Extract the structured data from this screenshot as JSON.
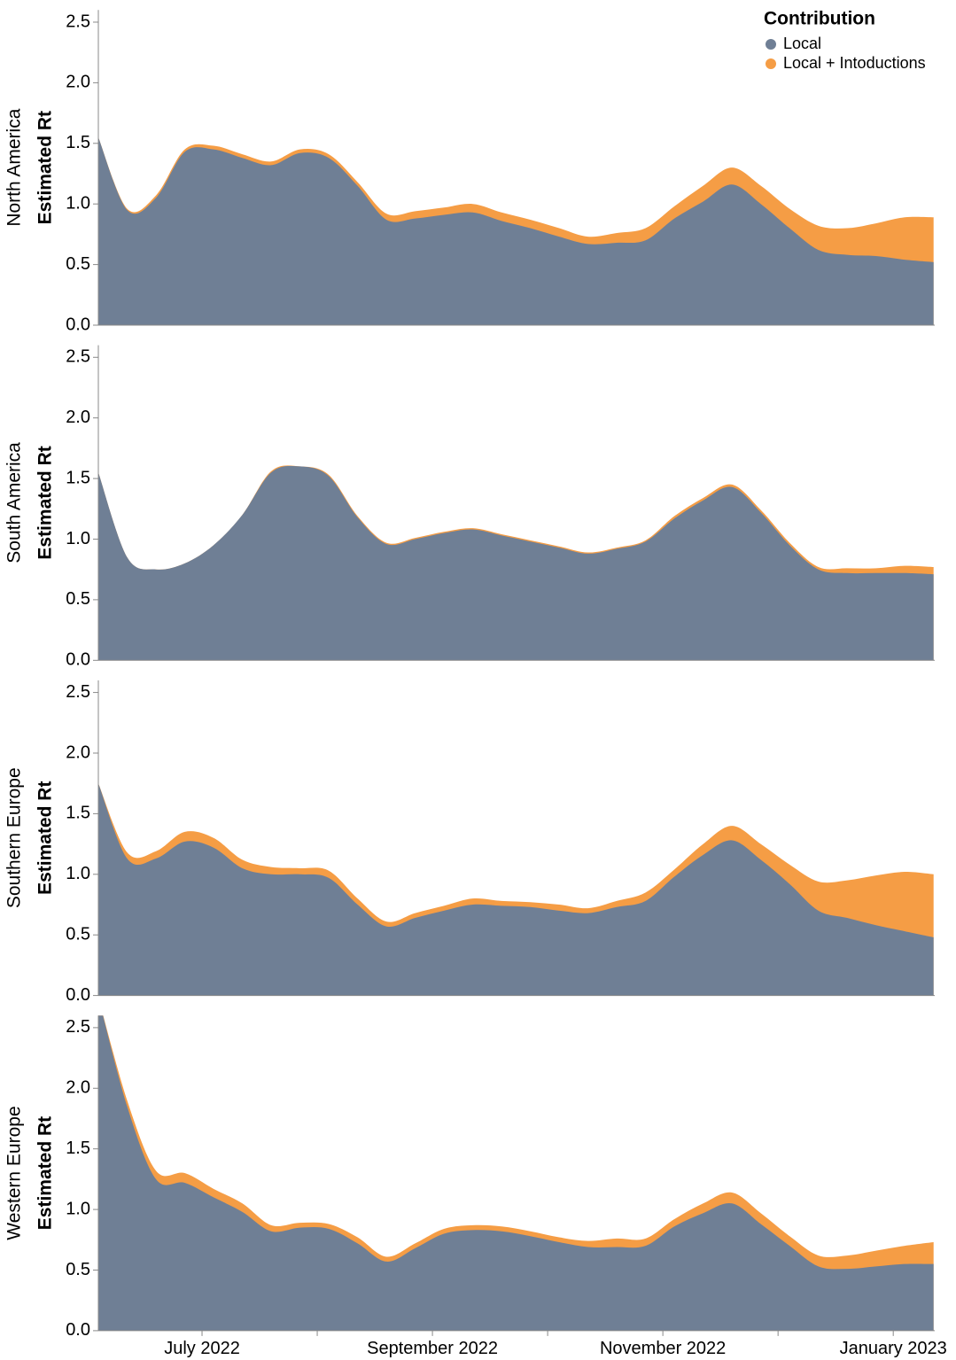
{
  "legend_title": "Contribution",
  "chart_data": [
    {
      "type": "area",
      "facet_label": "North America",
      "y_label": "Estimated Rt",
      "x": [
        5.1,
        5.35,
        5.6,
        5.85,
        6.1,
        6.35,
        6.6,
        6.85,
        7.1,
        7.35,
        7.6,
        7.85,
        8.1,
        8.35,
        8.6,
        8.85,
        9.1,
        9.35,
        9.6,
        9.85,
        10.1,
        10.35,
        10.6,
        10.85,
        11.1,
        11.35,
        11.6,
        11.85,
        12.1,
        12.35
      ],
      "xlim": [
        5.1,
        12.36
      ],
      "ylim": [
        0,
        2.6
      ],
      "yticks": [
        {
          "value": 0,
          "label": "0.0"
        },
        {
          "value": 0.5,
          "label": "0.5"
        },
        {
          "value": 1,
          "label": "1.0"
        },
        {
          "value": 1.5,
          "label": "1.5"
        },
        {
          "value": 2,
          "label": "2.0"
        },
        {
          "value": 2.5,
          "label": "2.5"
        }
      ],
      "series": [
        {
          "name": "Local + Intoductions",
          "color": "#f59d45",
          "values": [
            1.55,
            0.96,
            1.07,
            1.45,
            1.48,
            1.41,
            1.35,
            1.45,
            1.41,
            1.18,
            0.92,
            0.94,
            0.97,
            1.0,
            0.93,
            0.87,
            0.8,
            0.73,
            0.76,
            0.8,
            0.98,
            1.15,
            1.3,
            1.15,
            0.96,
            0.82,
            0.8,
            0.84,
            0.89,
            0.89
          ]
        },
        {
          "name": "Local",
          "color": "#6f7f95",
          "values": [
            1.55,
            0.95,
            1.05,
            1.43,
            1.45,
            1.38,
            1.32,
            1.42,
            1.38,
            1.15,
            0.87,
            0.88,
            0.91,
            0.93,
            0.86,
            0.8,
            0.73,
            0.67,
            0.68,
            0.7,
            0.88,
            1.02,
            1.16,
            1.0,
            0.8,
            0.62,
            0.58,
            0.57,
            0.54,
            0.52
          ]
        }
      ]
    },
    {
      "type": "area",
      "facet_label": "South America",
      "y_label": "Estimated Rt",
      "x": [
        5.1,
        5.35,
        5.6,
        5.85,
        6.1,
        6.35,
        6.6,
        6.85,
        7.1,
        7.35,
        7.6,
        7.85,
        8.1,
        8.35,
        8.6,
        8.85,
        9.1,
        9.35,
        9.6,
        9.85,
        10.1,
        10.35,
        10.6,
        10.85,
        11.1,
        11.35,
        11.6,
        11.85,
        12.1,
        12.35
      ],
      "xlim": [
        5.1,
        12.36
      ],
      "ylim": [
        0,
        2.6
      ],
      "yticks": [
        {
          "value": 0,
          "label": "0.0"
        },
        {
          "value": 0.5,
          "label": "0.5"
        },
        {
          "value": 1,
          "label": "1.0"
        },
        {
          "value": 1.5,
          "label": "1.5"
        },
        {
          "value": 2,
          "label": "2.0"
        },
        {
          "value": 2.5,
          "label": "2.5"
        }
      ],
      "series": [
        {
          "name": "Local + Intoductions",
          "color": "#f59d45",
          "values": [
            1.55,
            0.85,
            0.75,
            0.8,
            0.95,
            1.2,
            1.56,
            1.6,
            1.53,
            1.19,
            0.97,
            1.01,
            1.06,
            1.09,
            1.04,
            0.99,
            0.94,
            0.89,
            0.93,
            0.99,
            1.19,
            1.34,
            1.45,
            1.24,
            0.97,
            0.77,
            0.76,
            0.76,
            0.78,
            0.77
          ]
        },
        {
          "name": "Local",
          "color": "#6f7f95",
          "values": [
            1.55,
            0.85,
            0.75,
            0.8,
            0.95,
            1.2,
            1.55,
            1.6,
            1.52,
            1.18,
            0.96,
            1.0,
            1.05,
            1.08,
            1.03,
            0.98,
            0.93,
            0.88,
            0.92,
            0.98,
            1.17,
            1.32,
            1.43,
            1.22,
            0.95,
            0.75,
            0.72,
            0.72,
            0.72,
            0.71
          ]
        }
      ]
    },
    {
      "type": "area",
      "facet_label": "Southern Europe",
      "y_label": "Estimated Rt",
      "x": [
        5.1,
        5.35,
        5.6,
        5.85,
        6.1,
        6.35,
        6.6,
        6.85,
        7.1,
        7.35,
        7.6,
        7.85,
        8.1,
        8.35,
        8.6,
        8.85,
        9.1,
        9.35,
        9.6,
        9.85,
        10.1,
        10.35,
        10.6,
        10.85,
        11.1,
        11.35,
        11.6,
        11.85,
        12.1,
        12.35
      ],
      "xlim": [
        5.1,
        12.36
      ],
      "ylim": [
        0,
        2.6
      ],
      "yticks": [
        {
          "value": 0,
          "label": "0.0"
        },
        {
          "value": 0.5,
          "label": "0.5"
        },
        {
          "value": 1,
          "label": "1.0"
        },
        {
          "value": 1.5,
          "label": "1.5"
        },
        {
          "value": 2,
          "label": "2.0"
        },
        {
          "value": 2.5,
          "label": "2.5"
        }
      ],
      "series": [
        {
          "name": "Local + Intoductions",
          "color": "#f59d45",
          "values": [
            1.75,
            1.18,
            1.19,
            1.35,
            1.3,
            1.12,
            1.06,
            1.05,
            1.03,
            0.8,
            0.61,
            0.68,
            0.74,
            0.8,
            0.78,
            0.77,
            0.75,
            0.72,
            0.78,
            0.85,
            1.04,
            1.25,
            1.4,
            1.25,
            1.08,
            0.94,
            0.95,
            0.99,
            1.02,
            1.0
          ]
        },
        {
          "name": "Local",
          "color": "#6f7f95",
          "values": [
            1.75,
            1.13,
            1.13,
            1.27,
            1.22,
            1.05,
            1.0,
            1.0,
            0.97,
            0.75,
            0.57,
            0.64,
            0.7,
            0.75,
            0.74,
            0.73,
            0.7,
            0.68,
            0.73,
            0.78,
            0.98,
            1.16,
            1.28,
            1.12,
            0.92,
            0.7,
            0.64,
            0.58,
            0.53,
            0.48
          ]
        }
      ]
    },
    {
      "type": "area",
      "facet_label": "Western Europe",
      "y_label": "Estimated Rt",
      "x": [
        5.1,
        5.35,
        5.6,
        5.85,
        6.1,
        6.35,
        6.6,
        6.85,
        7.1,
        7.35,
        7.6,
        7.85,
        8.1,
        8.35,
        8.6,
        8.85,
        9.1,
        9.35,
        9.6,
        9.85,
        10.1,
        10.35,
        10.6,
        10.85,
        11.1,
        11.35,
        11.6,
        11.85,
        12.1,
        12.35
      ],
      "xlim": [
        5.1,
        12.36
      ],
      "ylim": [
        0,
        2.6
      ],
      "yticks": [
        {
          "value": 0,
          "label": "0.0"
        },
        {
          "value": 0.5,
          "label": "0.5"
        },
        {
          "value": 1,
          "label": "1.0"
        },
        {
          "value": 1.5,
          "label": "1.5"
        },
        {
          "value": 2,
          "label": "2.0"
        },
        {
          "value": 2.5,
          "label": "2.5"
        }
      ],
      "xticks": [
        {
          "value": 6,
          "label": "July 2022"
        },
        {
          "value": 8,
          "label": "September 2022"
        },
        {
          "value": 10,
          "label": "November 2022"
        },
        {
          "value": 12,
          "label": "January 2023"
        }
      ],
      "x_minor_ticks": [
        7,
        9,
        11
      ],
      "series": [
        {
          "name": "Local + Intoductions",
          "color": "#f59d45",
          "values": [
            2.75,
            1.9,
            1.32,
            1.3,
            1.17,
            1.05,
            0.87,
            0.89,
            0.88,
            0.77,
            0.61,
            0.72,
            0.84,
            0.87,
            0.86,
            0.82,
            0.77,
            0.74,
            0.76,
            0.76,
            0.92,
            1.05,
            1.14,
            0.97,
            0.78,
            0.62,
            0.62,
            0.66,
            0.7,
            0.73
          ]
        },
        {
          "name": "Local",
          "color": "#6f7f95",
          "values": [
            2.75,
            1.85,
            1.25,
            1.22,
            1.1,
            0.98,
            0.82,
            0.85,
            0.84,
            0.72,
            0.57,
            0.68,
            0.8,
            0.83,
            0.82,
            0.78,
            0.73,
            0.69,
            0.69,
            0.7,
            0.86,
            0.97,
            1.05,
            0.88,
            0.7,
            0.53,
            0.51,
            0.53,
            0.55,
            0.55
          ]
        }
      ]
    }
  ]
}
